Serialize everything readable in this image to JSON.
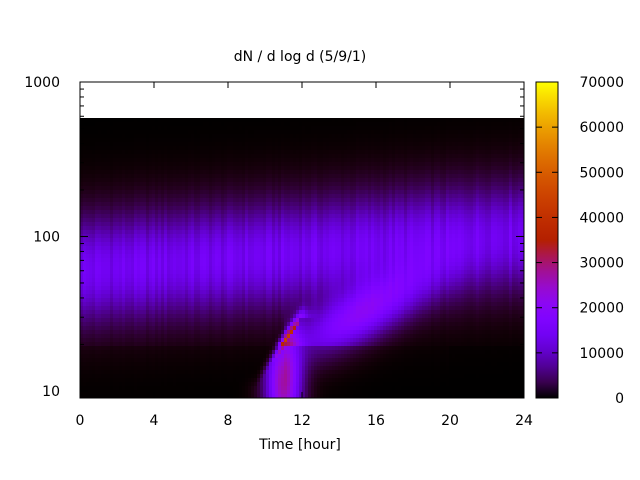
{
  "chart_data": {
    "type": "heatmap",
    "title": "dN / d log d (5/9/1)",
    "xlabel": "Time [hour]",
    "ylabel": "",
    "xlim": [
      0,
      24
    ],
    "ylim": [
      9,
      1000
    ],
    "y_scale": "log",
    "x_ticks": [
      "0",
      "4",
      "8",
      "12",
      "16",
      "20",
      "24"
    ],
    "x_tick_values": [
      0,
      4,
      8,
      12,
      16,
      20,
      24
    ],
    "y_ticks": [
      "10",
      "100",
      "1000"
    ],
    "y_tick_values": [
      10,
      100,
      1000
    ],
    "colorbar": {
      "min": 0,
      "max": 70000,
      "ticks": [
        "0",
        "10000",
        "20000",
        "30000",
        "40000",
        "50000",
        "60000",
        "70000"
      ],
      "tick_values": [
        0,
        10000,
        20000,
        30000,
        40000,
        50000,
        60000,
        70000
      ],
      "palette": "gnuplot"
    },
    "grid": false,
    "features": {
      "background_mode": {
        "description_units": "diameter ~ 60-150, count ~ 8000-16000",
        "center_diameter_start": 60,
        "center_diameter_end": 100,
        "peak_value": 14000
      },
      "nucleation_event": {
        "time_start": 9.5,
        "time_peak": 11,
        "diameter_range": [
          10,
          30
        ],
        "peak_value": 45000
      },
      "secondary_growth": {
        "time_range": [
          12,
          20
        ],
        "diameter_start": 20,
        "diameter_end": 60,
        "peak_value": 18000
      },
      "no_data_above_diameter": 600,
      "low_count_region_after_hour": 20
    }
  }
}
